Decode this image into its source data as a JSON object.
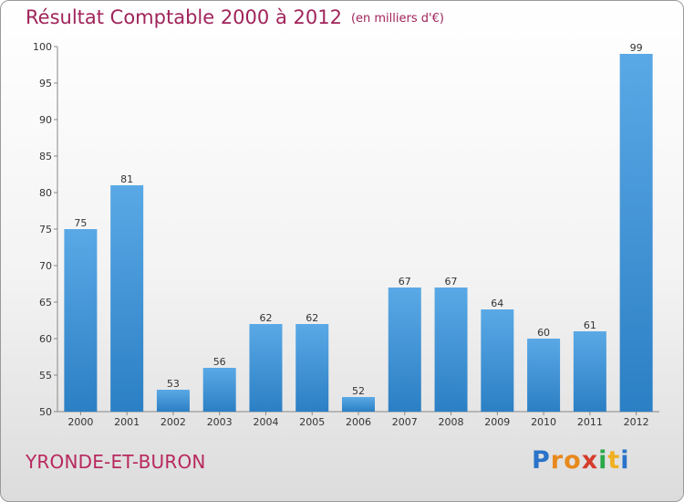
{
  "header": {
    "title": "Résultat Comptable 2000 à 2012",
    "unit": "(en milliers d'€)"
  },
  "footer": {
    "commune": "YRONDE-ET-BURON",
    "brand": "Proxiti"
  },
  "colors": {
    "bar_top": "#5aa9e6",
    "bar_bottom": "#2b7fc4",
    "title": "#a0245a"
  },
  "chart_data": {
    "type": "bar",
    "title": "Résultat Comptable 2000 à 2012",
    "xlabel": "",
    "ylabel": "",
    "categories": [
      "2000",
      "2001",
      "2002",
      "2003",
      "2004",
      "2005",
      "2006",
      "2007",
      "2008",
      "2009",
      "2010",
      "2011",
      "2012"
    ],
    "values": [
      75,
      81,
      53,
      56,
      62,
      62,
      52,
      67,
      67,
      64,
      60,
      61,
      99
    ],
    "ylim": [
      50,
      100
    ],
    "yticks": [
      50,
      55,
      60,
      65,
      70,
      75,
      80,
      85,
      90,
      95,
      100
    ],
    "grid": false,
    "legend": "none"
  }
}
